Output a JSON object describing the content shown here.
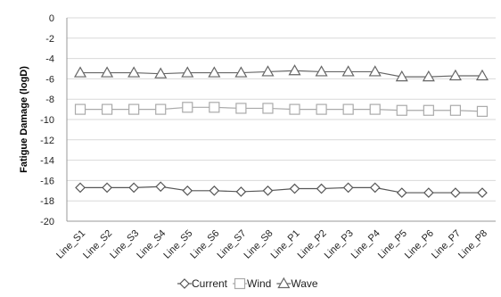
{
  "chart_data": {
    "type": "line",
    "title": "",
    "xlabel": "",
    "ylabel": "Fatigue Damage (logD)",
    "ylim": [
      -20,
      0
    ],
    "yticks": [
      0,
      -2,
      -4,
      -6,
      -8,
      -10,
      -12,
      -14,
      -16,
      -18,
      -20
    ],
    "grid": true,
    "legend_position": "bottom",
    "categories": [
      "Line_S1",
      "Line_S2",
      "Line_S3",
      "Line_S4",
      "Line_S5",
      "Line_S6",
      "Line_S7",
      "Line_S8",
      "Line_P1",
      "Line_P2",
      "Line_P3",
      "Line_P4",
      "Line_P5",
      "Line_P6",
      "Line_P7",
      "Line_P8"
    ],
    "series": [
      {
        "name": "Current",
        "marker": "diamond",
        "color": "#555555",
        "values": [
          -16.7,
          -16.7,
          -16.7,
          -16.6,
          -17.0,
          -17.0,
          -17.1,
          -17.0,
          -16.8,
          -16.8,
          -16.7,
          -16.7,
          -17.2,
          -17.2,
          -17.2,
          -17.2
        ]
      },
      {
        "name": "Wind",
        "marker": "square",
        "color": "#aaaaaa",
        "values": [
          -9.0,
          -9.0,
          -9.0,
          -9.0,
          -8.8,
          -8.8,
          -8.9,
          -8.9,
          -9.0,
          -9.0,
          -9.0,
          -9.0,
          -9.1,
          -9.1,
          -9.1,
          -9.2
        ]
      },
      {
        "name": "Wave",
        "marker": "triangle",
        "color": "#666666",
        "values": [
          -5.4,
          -5.4,
          -5.4,
          -5.5,
          -5.4,
          -5.4,
          -5.4,
          -5.3,
          -5.2,
          -5.3,
          -5.3,
          -5.3,
          -5.8,
          -5.8,
          -5.7,
          -5.7
        ]
      }
    ]
  }
}
